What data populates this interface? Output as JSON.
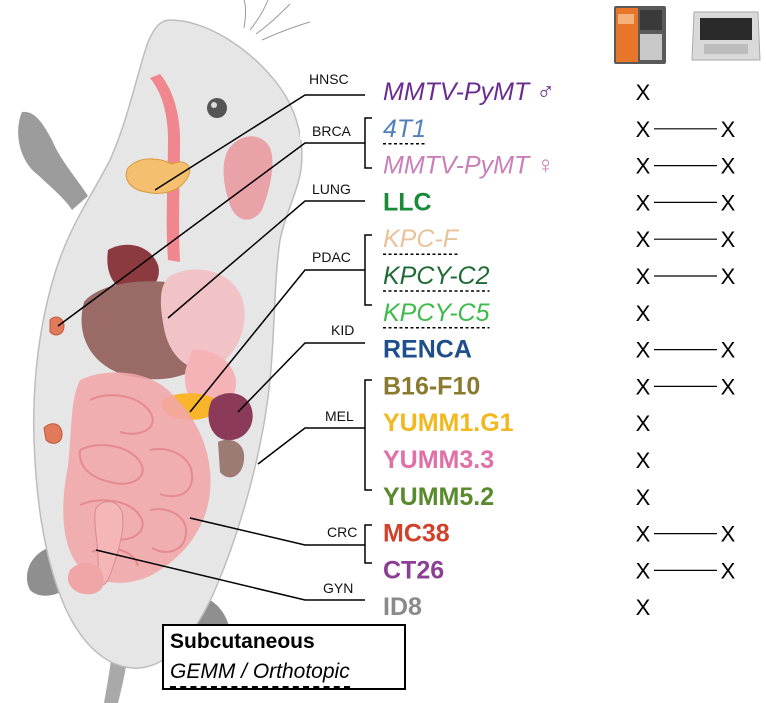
{
  "categories": [
    {
      "key": "hnsc",
      "label": "HNSC"
    },
    {
      "key": "brca",
      "label": "BRCA"
    },
    {
      "key": "lung",
      "label": "LUNG"
    },
    {
      "key": "pdac",
      "label": "PDAC"
    },
    {
      "key": "kid",
      "label": "KID"
    },
    {
      "key": "mel",
      "label": "MEL"
    },
    {
      "key": "crc",
      "label": "CRC"
    },
    {
      "key": "gyn",
      "label": "GYN"
    }
  ],
  "models": [
    {
      "label": "MMTV-PyMT ♂",
      "color": "#6b2c91",
      "style": "italic",
      "gemm": false,
      "col1": "X",
      "col2": ""
    },
    {
      "label": "4T1",
      "color": "#4f7fbf",
      "style": "italic",
      "gemm": true,
      "col1": "X",
      "col2": "X"
    },
    {
      "label": "MMTV-PyMT ♀",
      "color": "#c97fb8",
      "style": "italic",
      "gemm": false,
      "col1": "X",
      "col2": "X"
    },
    {
      "label": "LLC",
      "color": "#1a8a3a",
      "style": "bold",
      "gemm": false,
      "col1": "X",
      "col2": "X"
    },
    {
      "label": "KPC-F",
      "color": "#e8c39a",
      "style": "italic",
      "gemm": true,
      "col1": "X",
      "col2": "X"
    },
    {
      "label": "KPCY-C2",
      "color": "#1f6b35",
      "style": "italic",
      "gemm": true,
      "col1": "X",
      "col2": "X"
    },
    {
      "label": "KPCY-C5",
      "color": "#3dbb4a",
      "style": "italic",
      "gemm": true,
      "col1": "X",
      "col2": ""
    },
    {
      "label": "RENCA",
      "color": "#1f4e8c",
      "style": "bold",
      "gemm": false,
      "col1": "X",
      "col2": "X"
    },
    {
      "label": "B16-F10",
      "color": "#8a7a2e",
      "style": "bold",
      "gemm": false,
      "col1": "X",
      "col2": "X"
    },
    {
      "label": "YUMM1.G1",
      "color": "#f2b81f",
      "style": "bold",
      "gemm": false,
      "col1": "X",
      "col2": ""
    },
    {
      "label": "YUMM3.3",
      "color": "#e070a8",
      "style": "bold",
      "gemm": false,
      "col1": "X",
      "col2": ""
    },
    {
      "label": "YUMM5.2",
      "color": "#5a8a2e",
      "style": "bold",
      "gemm": false,
      "col1": "X",
      "col2": ""
    },
    {
      "label": "MC38",
      "color": "#d2402a",
      "style": "bold",
      "gemm": false,
      "col1": "X",
      "col2": "X"
    },
    {
      "label": "CT26",
      "color": "#8a3f93",
      "style": "bold",
      "gemm": false,
      "col1": "X",
      "col2": "X"
    },
    {
      "label": "ID8",
      "color": "#8a8a8a",
      "style": "bold",
      "gemm": false,
      "col1": "X",
      "col2": ""
    }
  ],
  "legend": {
    "subcutaneous": "Subcutaneous",
    "gemm": "GEMM / Orthotopic"
  },
  "instruments": [
    {
      "icon": "orange-imaging-instrument-icon"
    },
    {
      "icon": "grey-imaging-instrument-icon"
    }
  ]
}
